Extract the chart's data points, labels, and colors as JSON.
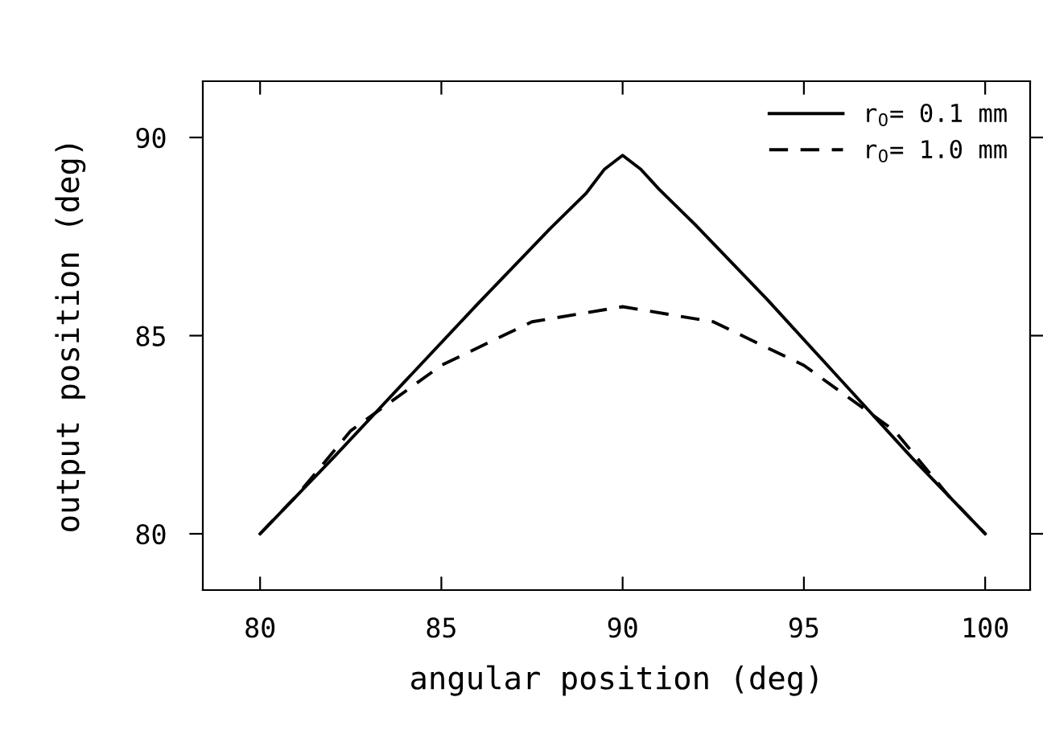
{
  "chart_data": {
    "type": "line",
    "xlabel": "angular position (deg)",
    "ylabel": "output position (deg)",
    "xlim": [
      78.42,
      101.24
    ],
    "ylim": [
      78.58,
      91.42
    ],
    "xticks": [
      80,
      85,
      90,
      95,
      100
    ],
    "yticks": [
      80,
      85,
      90
    ],
    "grid": false,
    "legend": "top right",
    "marker": "none",
    "series": [
      {
        "name": "r$_{0}$= 0.1 mm",
        "color": "#000000",
        "line_style": "solid",
        "x": [
          80,
          82,
          84,
          86,
          88,
          89,
          89.5,
          90,
          90.5,
          91,
          92,
          94,
          96,
          98,
          100
        ],
        "values": [
          80,
          81.9,
          83.85,
          85.8,
          87.7,
          88.6,
          89.2,
          89.55,
          89.2,
          88.7,
          87.8,
          85.9,
          83.9,
          81.9,
          80
        ]
      },
      {
        "name": "r$_{0}$= 1.0 mm",
        "color": "#000000",
        "line_style": "dashed",
        "x": [
          80,
          81,
          82.5,
          85,
          87.5,
          90,
          92.5,
          95,
          97.5,
          99,
          100
        ],
        "values": [
          80,
          80.95,
          82.6,
          84.25,
          85.35,
          85.73,
          85.35,
          84.25,
          82.6,
          80.95,
          80
        ]
      }
    ]
  }
}
